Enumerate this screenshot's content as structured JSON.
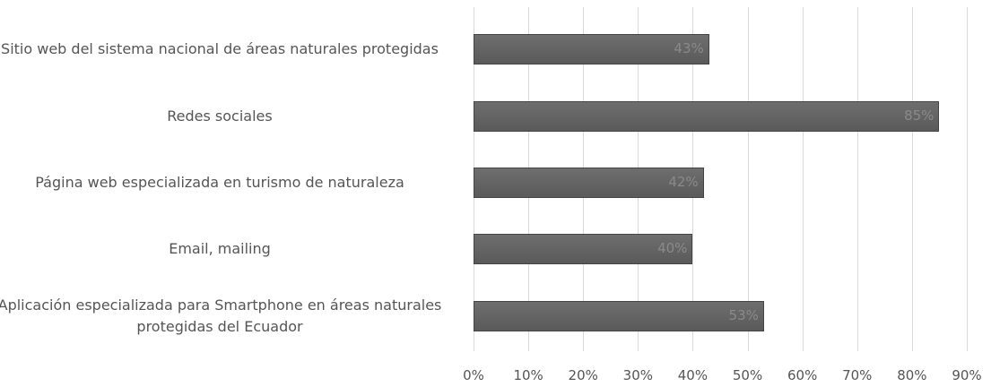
{
  "chart_data": {
    "type": "bar",
    "orientation": "horizontal",
    "categories": [
      "Sitio web del sistema nacional de áreas naturales protegidas",
      "Redes sociales",
      "Página web especializada en turismo de naturaleza",
      "Email, mailing",
      "Aplicación especializada para Smartphone en áreas naturales protegidas del Ecuador"
    ],
    "values": [
      43,
      85,
      42,
      40,
      53
    ],
    "value_labels": [
      "43%",
      "85%",
      "42%",
      "40%",
      "53%"
    ],
    "color": "#6e6e6e",
    "xlim": [
      0,
      90
    ],
    "xticks": [
      {
        "value": 0,
        "label": "0%"
      },
      {
        "value": 10,
        "label": "10%"
      },
      {
        "value": 20,
        "label": "20%"
      },
      {
        "value": 30,
        "label": "30%"
      },
      {
        "value": 40,
        "label": "40%"
      },
      {
        "value": 50,
        "label": "50%"
      },
      {
        "value": 60,
        "label": "60%"
      },
      {
        "value": 70,
        "label": "70%"
      },
      {
        "value": 80,
        "label": "80%"
      },
      {
        "value": 90,
        "label": "90%"
      }
    ],
    "grid": true
  }
}
